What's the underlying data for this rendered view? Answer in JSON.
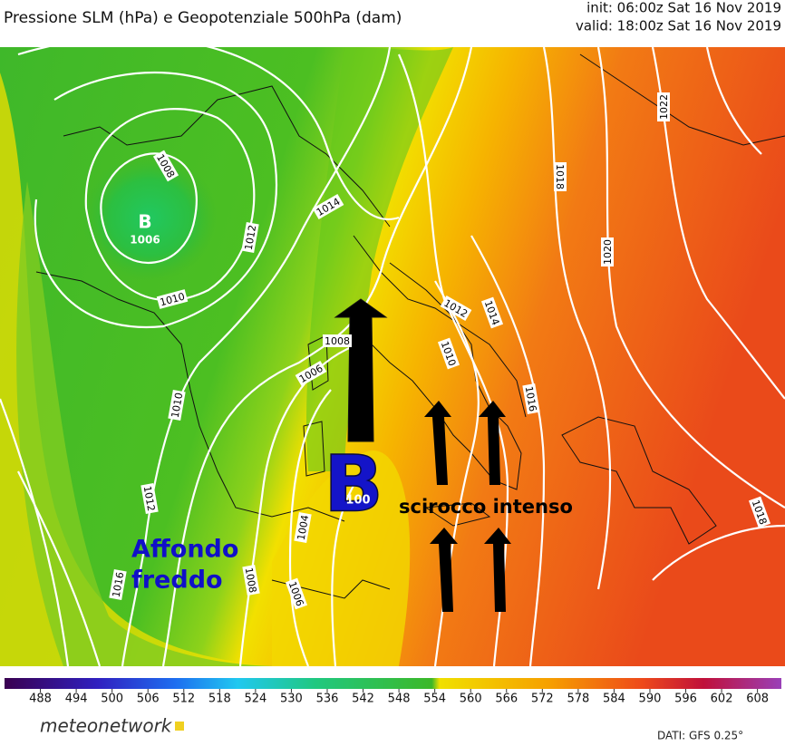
{
  "header": {
    "title": "Pressione SLM (hPa) e Geopotenziale 500hPa (dam)",
    "init": "init: 06:00z Sat 16 Nov 2019",
    "valid": "valid: 18:00z Sat 16 Nov 2019"
  },
  "map": {
    "lows": [
      {
        "symbol": "B",
        "pressure": 1006
      },
      {
        "symbol": "B",
        "pressure": 100
      }
    ],
    "isobar_labels": [
      1008,
      1012,
      1010,
      1014,
      1018,
      1022,
      1020,
      1012,
      1014,
      1010,
      1016,
      1008,
      1006,
      1010,
      1012,
      1016,
      1008,
      1004,
      1006,
      1018
    ],
    "annotations": {
      "cold": [
        "Affondo",
        "freddo"
      ],
      "wind": "scirocco intenso"
    }
  },
  "colorbar": {
    "lim": [
      482,
      612
    ],
    "ticks": [
      488,
      494,
      500,
      506,
      512,
      518,
      524,
      530,
      536,
      542,
      548,
      554,
      560,
      566,
      572,
      578,
      584,
      590,
      596,
      602,
      608
    ]
  },
  "footer": {
    "brand": "meteonetwork",
    "source": "DATI: GFS 0.25°"
  }
}
